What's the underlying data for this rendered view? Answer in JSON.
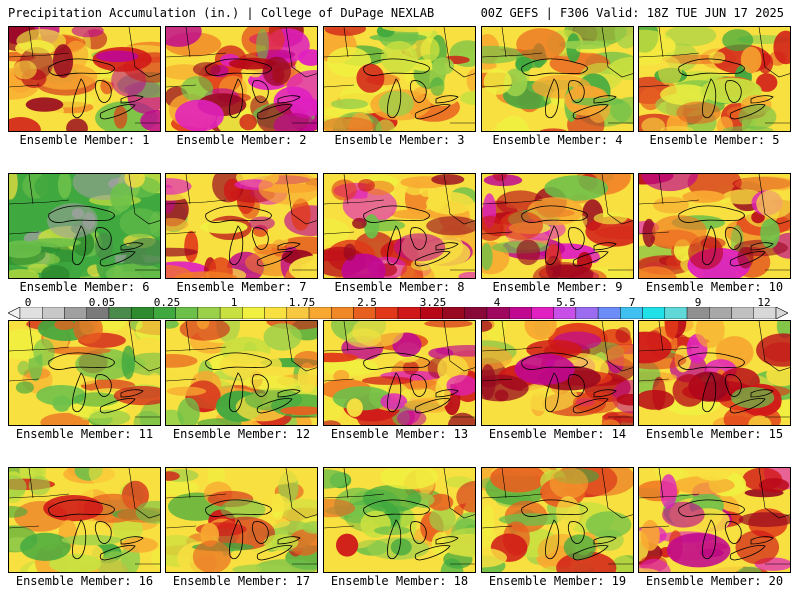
{
  "header": {
    "title_left": "Precipitation Accumulation (in.) | College of DuPage NEXLAB",
    "title_right": "00Z GEFS | F306 Valid: 18Z TUE JUN 17 2025"
  },
  "members": [
    {
      "label": "Ensemble Member: 1",
      "tone": "wet"
    },
    {
      "label": "Ensemble Member: 2",
      "tone": "wet"
    },
    {
      "label": "Ensemble Member: 3",
      "tone": "mixed"
    },
    {
      "label": "Ensemble Member: 4",
      "tone": "mixed"
    },
    {
      "label": "Ensemble Member: 5",
      "tone": "mixed"
    },
    {
      "label": "Ensemble Member: 6",
      "tone": "dry"
    },
    {
      "label": "Ensemble Member: 7",
      "tone": "wet"
    },
    {
      "label": "Ensemble Member: 8",
      "tone": "wet"
    },
    {
      "label": "Ensemble Member: 9",
      "tone": "wet"
    },
    {
      "label": "Ensemble Member: 10",
      "tone": "wet"
    },
    {
      "label": "Ensemble Member: 11",
      "tone": "mixed"
    },
    {
      "label": "Ensemble Member: 12",
      "tone": "mixed"
    },
    {
      "label": "Ensemble Member: 13",
      "tone": "wet"
    },
    {
      "label": "Ensemble Member: 14",
      "tone": "wet"
    },
    {
      "label": "Ensemble Member: 15",
      "tone": "wet"
    },
    {
      "label": "Ensemble Member: 16",
      "tone": "mixed"
    },
    {
      "label": "Ensemble Member: 17",
      "tone": "mixed"
    },
    {
      "label": "Ensemble Member: 18",
      "tone": "mixed"
    },
    {
      "label": "Ensemble Member: 19",
      "tone": "mixed"
    },
    {
      "label": "Ensemble Member: 20",
      "tone": "wet"
    }
  ],
  "colorbar": {
    "labels": [
      "0",
      "0.05",
      "0.25",
      "1",
      "1.75",
      "2.5",
      "3.25",
      "4",
      "5.5",
      "7",
      "9",
      "12"
    ],
    "colors": [
      "#e0e0e0",
      "#c8c8c8",
      "#a0a0a0",
      "#7a7a7a",
      "#4a8a4a",
      "#2e8b2e",
      "#3fa83f",
      "#6cc04a",
      "#9ad04a",
      "#c8e040",
      "#f0f040",
      "#f8e040",
      "#f8c840",
      "#f8a830",
      "#f08828",
      "#e86020",
      "#e03818",
      "#d01818",
      "#b80818",
      "#980820",
      "#880838",
      "#a00860",
      "#c00890",
      "#e020c0",
      "#c850e8",
      "#9c6cf0",
      "#6c8cf8",
      "#40c0f0",
      "#20e0e8",
      "#60d8d8",
      "#909090",
      "#a8a8a8",
      "#c0c0c0",
      "#d8d8d8"
    ]
  }
}
